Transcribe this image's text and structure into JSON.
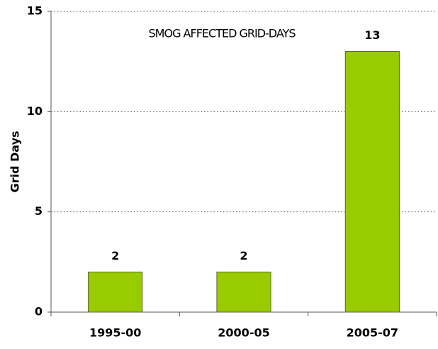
{
  "chart_data": {
    "type": "bar",
    "title": "SMOG AFFECTED GRID-DAYS",
    "y_label": "Grid Days",
    "categories": [
      "1995-00",
      "2000-05",
      "2005-07"
    ],
    "values": [
      2,
      2,
      13
    ],
    "color": "#99cc00",
    "ylim": [
      0,
      15
    ],
    "yticks": [
      0,
      5,
      10,
      15
    ],
    "grid": true
  }
}
